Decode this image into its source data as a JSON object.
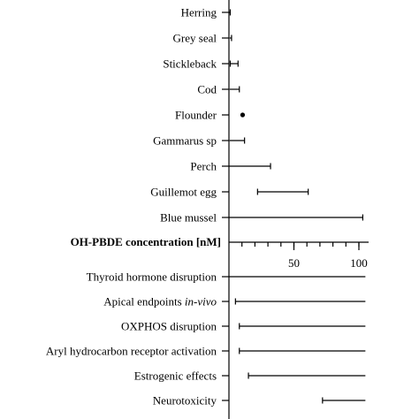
{
  "chart_data": {
    "type": "range",
    "axis": {
      "label": "OH-PBDE concentration [nM]",
      "ticks": [
        50,
        100
      ],
      "range": [
        0,
        105
      ]
    },
    "top_panel": {
      "categories": [
        {
          "label": "Herring",
          "min": 0,
          "max": 1
        },
        {
          "label": "Grey seal",
          "min": 0.5,
          "max": 2
        },
        {
          "label": "Stickleback",
          "min": 1,
          "max": 7
        },
        {
          "label": "Cod",
          "min": 0.5,
          "max": 8
        },
        {
          "label": "Flounder",
          "min": 9.5,
          "max": 9.5
        },
        {
          "label": "Gammarus sp",
          "min": 0.5,
          "max": 12
        },
        {
          "label": "Perch",
          "min": 0,
          "max": 32
        },
        {
          "label": "Guillemot egg",
          "min": 22,
          "max": 61
        },
        {
          "label": "Blue mussel",
          "min": 0,
          "max": 103
        }
      ]
    },
    "bottom_panel": {
      "categories": [
        {
          "label": "Thyroid hormone disruption",
          "min": 0,
          "max": 105
        },
        {
          "label": "Apical endpoints ",
          "label_italic": "in-vivo",
          "min": 5,
          "max": 105
        },
        {
          "label": "OXPHOS disruption",
          "min": 8,
          "max": 105
        },
        {
          "label": "Aryl hydrocarbon receptor activation",
          "min": 8,
          "max": 105
        },
        {
          "label": "Estrogenic effects",
          "min": 15,
          "max": 105
        },
        {
          "label": "Neurotoxicity",
          "min": 72,
          "max": 105
        }
      ]
    }
  }
}
